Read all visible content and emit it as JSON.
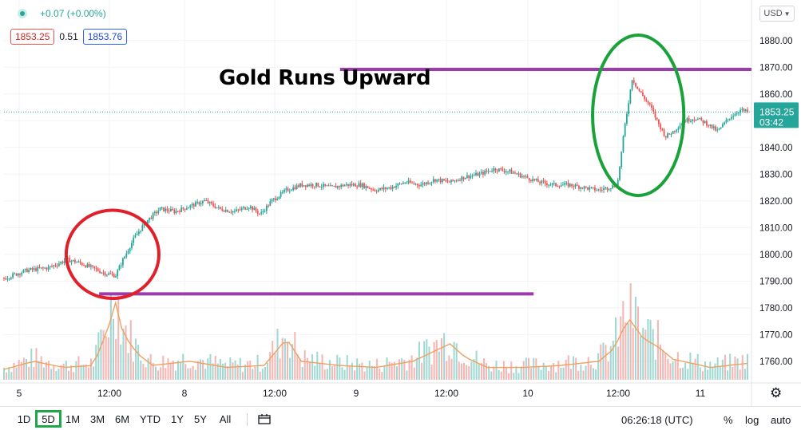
{
  "header": {
    "change": "+0.07 (+0.00%)",
    "bid": "1853.25",
    "spread": "0.51",
    "ask": "1853.76",
    "currency": "USD"
  },
  "price_label": {
    "price": "1853.25",
    "countdown": "03:42"
  },
  "colors": {
    "up": "#26a69a",
    "down": "#ef5350",
    "volume_ma": "#f0a060",
    "annotation_line": "#9c3bab",
    "circle_red": "#e0212b",
    "circle_green": "#19a13a",
    "price_tag": "#26a69a"
  },
  "bottom_bar": {
    "ranges": [
      "1D",
      "5D",
      "1M",
      "3M",
      "6M",
      "YTD",
      "1Y",
      "5Y",
      "All"
    ],
    "active_range": "5D",
    "clock": "06:26:18 (UTC)",
    "options": [
      "%",
      "log",
      "auto"
    ]
  },
  "chart_data": {
    "type": "candlestick",
    "title": "Gold Runs Upward",
    "ylim": [
      1751,
      1885
    ],
    "y_ticks": [
      1760,
      1770,
      1780,
      1790,
      1800,
      1810,
      1820,
      1830,
      1840,
      1850,
      1860,
      1870,
      1880
    ],
    "y_tick_labels": [
      "1760.00",
      "1770.00",
      "1780.00",
      "1790.00",
      "1800.00",
      "1810.00",
      "1820.00",
      "1830.00",
      "1840.00",
      "1850.00",
      "1860.00",
      "1870.00",
      "1880.00"
    ],
    "x_ticks": [
      "5",
      "12:00",
      "8",
      "12:00",
      "9",
      "12:00",
      "10",
      "12:00",
      "11"
    ],
    "grid": true,
    "last_price": 1853.25,
    "series": [
      {
        "x": [
          0.0,
          0.03,
          0.06,
          0.085,
          0.1,
          0.118,
          0.135,
          0.15,
          0.16,
          0.175,
          0.19,
          0.21,
          0.23,
          0.25,
          0.27,
          0.29,
          0.31,
          0.33,
          0.345,
          0.36,
          0.38,
          0.4,
          0.42,
          0.44,
          0.46,
          0.48,
          0.5,
          0.52,
          0.54,
          0.56,
          0.58,
          0.6,
          0.62,
          0.64,
          0.66,
          0.68,
          0.7,
          0.72,
          0.74,
          0.76,
          0.78,
          0.8,
          0.825,
          0.835,
          0.845,
          0.852,
          0.86,
          0.87,
          0.88,
          0.89,
          0.9,
          0.915,
          0.93,
          0.945,
          0.96,
          0.975,
          0.99,
          1.0
        ],
        "values": [
          1791,
          1794,
          1795,
          1798,
          1797,
          1795,
          1793,
          1792,
          1798,
          1806,
          1812,
          1817,
          1816,
          1818,
          1820,
          1817,
          1816,
          1818,
          1815,
          1820,
          1824,
          1826,
          1826,
          1825,
          1826,
          1826,
          1824,
          1825,
          1827,
          1826,
          1828,
          1827,
          1829,
          1830,
          1832,
          1831,
          1829,
          1827,
          1826,
          1826,
          1825,
          1824,
          1826,
          1848,
          1866,
          1862,
          1859,
          1855,
          1849,
          1844,
          1846,
          1850,
          1851,
          1849,
          1846,
          1851,
          1854,
          1853.25
        ]
      }
    ],
    "volume": {
      "x": [
        0.0,
        0.04,
        0.08,
        0.12,
        0.14,
        0.15,
        0.16,
        0.18,
        0.2,
        0.25,
        0.3,
        0.35,
        0.38,
        0.4,
        0.45,
        0.5,
        0.55,
        0.6,
        0.62,
        0.65,
        0.7,
        0.75,
        0.8,
        0.82,
        0.84,
        0.86,
        0.88,
        0.9,
        0.95,
        1.0
      ],
      "values": [
        10,
        18,
        12,
        14,
        50,
        75,
        45,
        25,
        14,
        18,
        12,
        14,
        40,
        18,
        14,
        12,
        18,
        35,
        22,
        12,
        12,
        14,
        18,
        30,
        60,
        40,
        32,
        20,
        12,
        16
      ]
    },
    "annotations": [
      {
        "kind": "hline",
        "value": 1869.2,
        "x_start": 0.452,
        "x_end": 1.0
      },
      {
        "kind": "hline",
        "value": 1785.2,
        "x_start": 0.128,
        "x_end": 0.707
      },
      {
        "kind": "circle",
        "label": "red",
        "center_x": 0.146,
        "center_value": 1800,
        "rx_frac": 0.062,
        "ry_value": 16.5
      },
      {
        "kind": "circle",
        "label": "green",
        "center_x": 0.853,
        "center_value": 1852,
        "rx_frac": 0.061,
        "ry_value": 30
      }
    ]
  }
}
